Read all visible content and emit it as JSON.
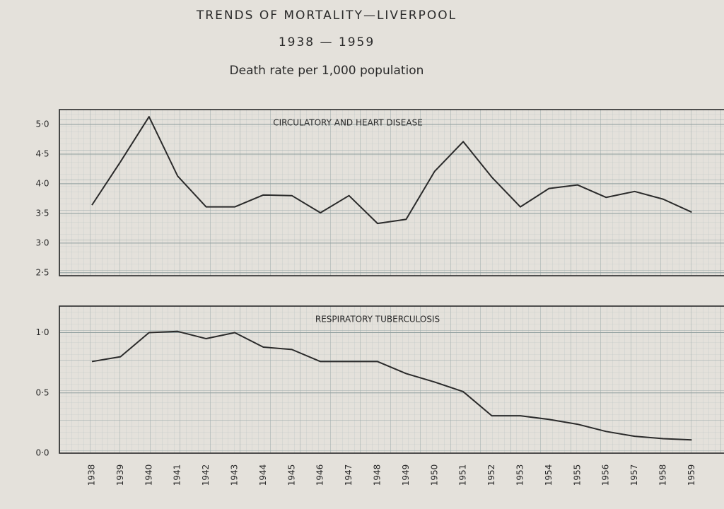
{
  "chart_data": {
    "type": "line",
    "title": "TRENDS OF MORTALITY—LIVERPOOL",
    "subtitle": "1938 — 1959",
    "note": "Death rate per 1,000 population",
    "grid": true,
    "categories": [
      "1938",
      "1939",
      "1940",
      "1941",
      "1942",
      "1943",
      "1944",
      "1945",
      "1946",
      "1947",
      "1948",
      "1949",
      "1950",
      "1951",
      "1952",
      "1953",
      "1954",
      "1955",
      "1956",
      "1957",
      "1958",
      "1959"
    ],
    "panels": [
      {
        "label": "CIRCULATORY AND HEART DISEASE",
        "color": "#2a2a2a",
        "values": [
          3.64,
          4.37,
          5.13,
          4.13,
          3.61,
          3.61,
          3.81,
          3.8,
          3.51,
          3.8,
          3.33,
          3.4,
          4.21,
          4.71,
          4.11,
          3.61,
          3.92,
          3.98,
          3.77,
          3.87,
          3.74,
          3.52
        ],
        "ylim": [
          2.45,
          5.25
        ],
        "yticks": [
          {
            "value": 2.5,
            "label": "2·5"
          },
          {
            "value": 3,
            "label": "3·0"
          },
          {
            "value": 3.5,
            "label": "3·5"
          },
          {
            "value": 4,
            "label": "4·0"
          },
          {
            "value": 4.5,
            "label": "4·5"
          },
          {
            "value": 5,
            "label": "5·0"
          }
        ]
      },
      {
        "label": "RESPIRATORY TUBERCULOSIS",
        "color": "#2a2a2a",
        "values": [
          0.76,
          0.8,
          1.0,
          1.01,
          0.95,
          1.0,
          0.88,
          0.86,
          0.76,
          0.76,
          0.76,
          0.66,
          0.59,
          0.51,
          0.31,
          0.31,
          0.28,
          0.24,
          0.18,
          0.14,
          0.12,
          0.11
        ],
        "ylim": [
          0,
          1.22
        ],
        "yticks": [
          {
            "value": 0,
            "label": "0·0"
          },
          {
            "value": 0.5,
            "label": "0·5"
          },
          {
            "value": 1,
            "label": "1·0"
          }
        ]
      }
    ]
  }
}
